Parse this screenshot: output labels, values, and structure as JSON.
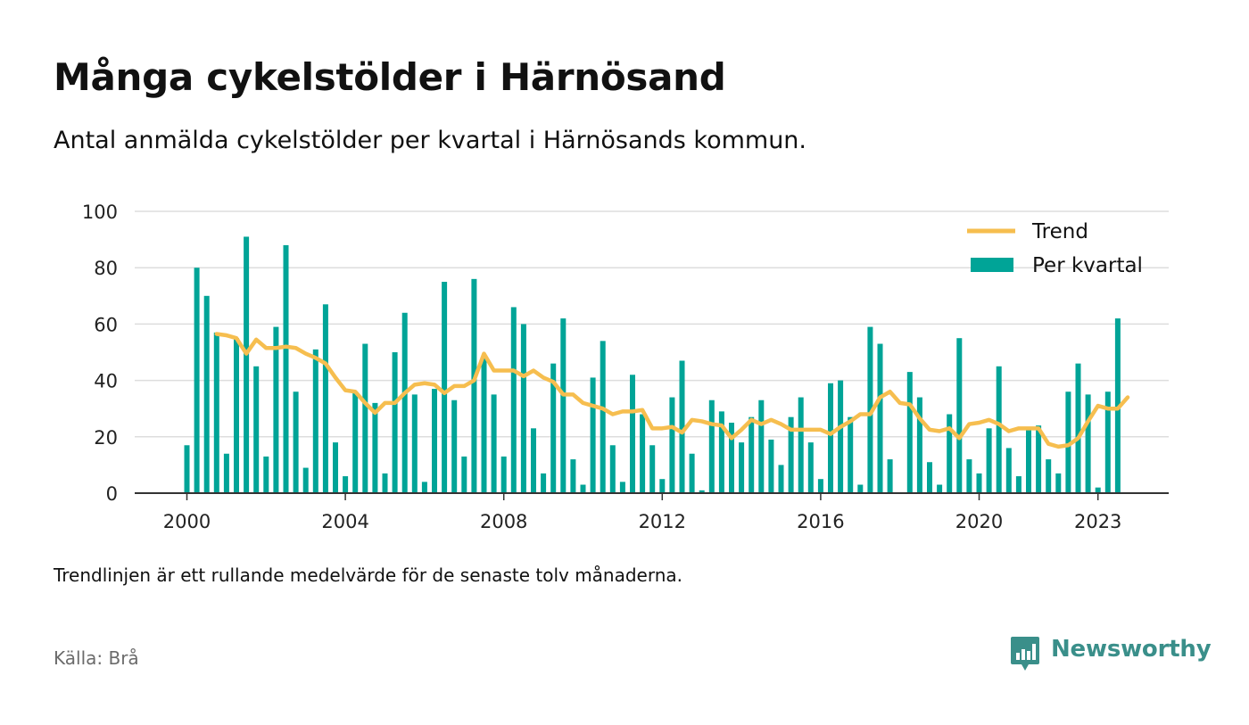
{
  "title": "Många cykelstölder i Härnösand",
  "subtitle": "Antal anmälda cykelstölder per kvartal i Härnösands kommun.",
  "note": "Trendlinjen är ett rullande medelvärde för de senaste tolv månaderna.",
  "source": "Källa: Brå",
  "logo": {
    "text": "Newsworthy",
    "icon": "bar-chart-speech-bubble-icon"
  },
  "colors": {
    "bar": "#00a497",
    "trend": "#f6be4f",
    "grid": "#dddddd",
    "axis": "#333333",
    "logo": "#3a8f8a"
  },
  "chart_data": {
    "type": "bar",
    "x_start": "2000 Q1",
    "x_ticks": [
      "2000",
      "2004",
      "2008",
      "2012",
      "2016",
      "2020",
      "2023"
    ],
    "y_ticks": [
      "0",
      "20",
      "40",
      "60",
      "80",
      "100"
    ],
    "ylim": [
      0,
      100
    ],
    "grid": true,
    "legend_position": "top-right",
    "series": [
      {
        "name": "Per kvartal",
        "type": "bar",
        "values": [
          17,
          80,
          70,
          57,
          14,
          55,
          91,
          45,
          13,
          59,
          88,
          36,
          9,
          51,
          67,
          18,
          6,
          36,
          53,
          32,
          7,
          50,
          64,
          35,
          4,
          37,
          75,
          33,
          13,
          76,
          49,
          35,
          13,
          66,
          60,
          23,
          7,
          46,
          62,
          12,
          3,
          41,
          54,
          17,
          4,
          42,
          28,
          17,
          5,
          34,
          47,
          14,
          1,
          33,
          29,
          25,
          18,
          27,
          33,
          19,
          10,
          27,
          34,
          18,
          5,
          39,
          40,
          27,
          3,
          59,
          53,
          12,
          0,
          43,
          34,
          11,
          3,
          28,
          55,
          12,
          7,
          23,
          45,
          16,
          6,
          23,
          24,
          12,
          7,
          36,
          46,
          35,
          2,
          36,
          62
        ]
      },
      {
        "name": "Trend",
        "type": "line",
        "start_index": 3,
        "values": [
          56.5,
          56,
          55,
          49.5,
          54.5,
          51.5,
          51.5,
          52,
          51.5,
          49.5,
          48,
          46,
          41,
          36.5,
          36,
          32,
          28.5,
          32,
          32,
          35.5,
          38.5,
          39,
          38.5,
          35.5,
          38,
          38,
          40,
          49.5,
          43.5,
          43.5,
          43.5,
          41.5,
          43.5,
          41,
          39.5,
          35,
          35,
          32,
          31,
          30,
          28,
          29,
          29,
          29.5,
          23,
          23,
          23.5,
          21.5,
          26,
          25.5,
          24.5,
          24,
          19.5,
          22.5,
          26,
          24.5,
          26,
          24.5,
          22.5,
          22.5,
          22.5,
          22.5,
          21,
          23.5,
          25.5,
          28,
          28,
          34,
          36,
          32,
          31.5,
          26.5,
          22.5,
          22,
          23,
          19.5,
          24.5,
          25,
          26,
          24.5,
          22,
          23,
          23,
          23,
          17.5,
          16.5,
          17,
          19.5,
          25.5,
          31,
          30,
          30,
          34
        ]
      }
    ]
  }
}
